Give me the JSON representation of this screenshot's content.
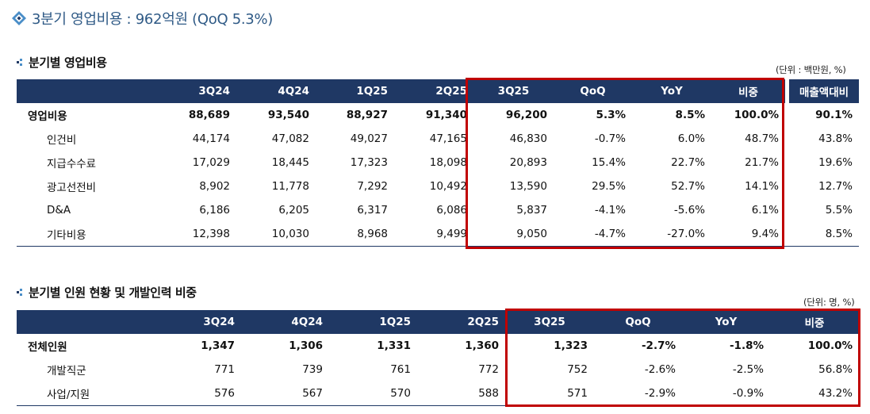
{
  "main_title": "3분기 영업비용 : 962억원 (QoQ 5.3%)",
  "colors": {
    "header_bg": "#1f3864",
    "highlight": "#c00000",
    "title_blue": "#2f5a86"
  },
  "section1": {
    "title": "분기별 영업비용",
    "unit": "(단위 : 백만원, %)",
    "headers": [
      "3Q24",
      "4Q24",
      "1Q25",
      "2Q25",
      "3Q25",
      "QoQ",
      "YoY",
      "비중",
      "매출액대비"
    ],
    "rows": [
      {
        "label": "영업비용",
        "values": [
          "88,689",
          "93,540",
          "88,927",
          "91,340",
          "96,200",
          "5.3%",
          "8.5%",
          "100.0%",
          "90.1%"
        ]
      },
      {
        "label": "인건비",
        "values": [
          "44,174",
          "47,082",
          "49,027",
          "47,165",
          "46,830",
          "-0.7%",
          "6.0%",
          "48.7%",
          "43.8%"
        ]
      },
      {
        "label": "지급수수료",
        "values": [
          "17,029",
          "18,445",
          "17,323",
          "18,098",
          "20,893",
          "15.4%",
          "22.7%",
          "21.7%",
          "19.6%"
        ]
      },
      {
        "label": "광고선전비",
        "values": [
          "8,902",
          "11,778",
          "7,292",
          "10,492",
          "13,590",
          "29.5%",
          "52.7%",
          "14.1%",
          "12.7%"
        ]
      },
      {
        "label": "D&A",
        "values": [
          "6,186",
          "6,205",
          "6,317",
          "6,086",
          "5,837",
          "-4.1%",
          "-5.6%",
          "6.1%",
          "5.5%"
        ]
      },
      {
        "label": "기타비용",
        "values": [
          "12,398",
          "10,030",
          "8,968",
          "9,499",
          "9,050",
          "-4.7%",
          "-27.0%",
          "9.4%",
          "8.5%"
        ]
      }
    ]
  },
  "section2": {
    "title": "분기별 인원 현황 및 개발인력 비중",
    "unit": "(단위: 명, %)",
    "headers": [
      "3Q24",
      "4Q24",
      "1Q25",
      "2Q25",
      "3Q25",
      "QoQ",
      "YoY",
      "비중"
    ],
    "rows": [
      {
        "label": "전체인원",
        "values": [
          "1,347",
          "1,306",
          "1,331",
          "1,360",
          "1,323",
          "-2.7%",
          "-1.8%",
          "100.0%"
        ]
      },
      {
        "label": "개발직군",
        "values": [
          "771",
          "739",
          "761",
          "772",
          "752",
          "-2.6%",
          "-2.5%",
          "56.8%"
        ]
      },
      {
        "label": "사업/지원",
        "values": [
          "576",
          "567",
          "570",
          "588",
          "571",
          "-2.9%",
          "-0.9%",
          "43.2%"
        ]
      }
    ]
  }
}
